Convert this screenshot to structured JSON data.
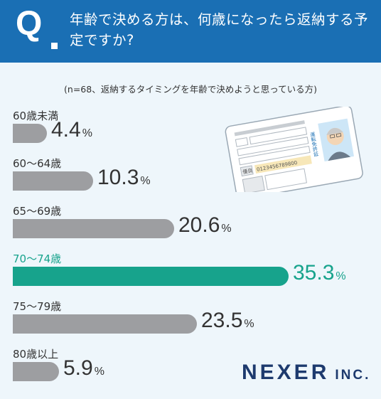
{
  "header": {
    "q_mark": "Q",
    "question": "年齢で決める方は、何歳になったら返納する予定ですか?"
  },
  "note": "(n=68、返納するタイミングを年齢で決めようと思っている方)",
  "chart_data": {
    "type": "bar",
    "orientation": "horizontal",
    "categories": [
      "60歳未満",
      "60〜64歳",
      "65〜69歳",
      "70〜74歳",
      "75〜79歳",
      "80歳以上"
    ],
    "values": [
      4.4,
      10.3,
      20.6,
      35.3,
      23.5,
      5.9
    ],
    "value_labels": [
      "4.4",
      "10.3",
      "20.6",
      "35.3",
      "23.5",
      "5.9"
    ],
    "unit": "%",
    "highlight_index": 3,
    "colors": {
      "default": "#9d9ea1",
      "highlight": "#17a38c",
      "text": "#333333"
    }
  },
  "illustration": {
    "card_number": "0123456789800",
    "card_vertical_text": "運転免許証",
    "card_field": "優良"
  },
  "logo": {
    "main": "NEXER",
    "sub": "INC."
  },
  "colors": {
    "header": "#1a6fb4",
    "background": "#eef6fb",
    "logo": "#1d3a6e"
  }
}
